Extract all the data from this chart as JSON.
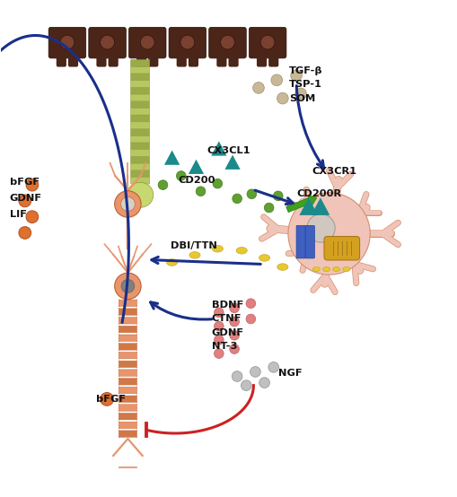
{
  "background_color": "#ffffff",
  "figure_width": 5.1,
  "figure_height": 5.54,
  "dpi": 100,
  "labels": {
    "TGF": "TGF-β",
    "TSP": "TSP-1",
    "SOM": "SOM",
    "CX3CL1": "CX3CL1",
    "CD200": "CD200",
    "CD200R": "CD200R",
    "CX3CR1": "CX3CR1",
    "DBI": "DBI/TTN",
    "BDNF": "BDNF",
    "CTNF": "CTNF",
    "GDNF": "GDNF",
    "NT3": "NT-3",
    "NGF": "NGF",
    "bFGF_left": "bFGF",
    "GDNF_left": "GDNF",
    "LIF": "LIF",
    "bFGF_bot": "bFGF"
  },
  "colors": {
    "cell_dark": "#4a2518",
    "cell_nucleus": "#7a4030",
    "rod_light": "#b8c860",
    "rod_dark": "#9aaa48",
    "rod_ec": "#8a9838",
    "neuron": "#e8956d",
    "neuron_ec": "#c06030",
    "neuron_nucleus": "#d4d0c8",
    "lower_nucleus": "#808080",
    "microglia": "#f0c4b8",
    "microglia_ec": "#d4906c",
    "mg_nucleus": "#d0c8c0",
    "mg_nucleus_ec": "#a09890",
    "mito": "#d4a020",
    "mito_ec": "#a87818",
    "receptor_blue": "#4060c0",
    "receptor_ec": "#2040a0",
    "teal": "#1a8a8a",
    "blue_arrow": "#1a2f8a",
    "red_arrow": "#cc2222",
    "orange_dot": "#e07030",
    "orange_dot_ec": "#b05020",
    "yellow_ellipse": "#e8c830",
    "yellow_ec": "#c0a020",
    "pink_dot": "#e08080",
    "pink_dot_ec": "#c06060",
    "gray_dot": "#c0c0c0",
    "gray_dot_ec": "#909090",
    "green_dot": "#60a030",
    "green_dot_ec": "#408020",
    "beige_dot": "#c8b898",
    "beige_dot_ec": "#a09070",
    "cd200r_green": "#40a020",
    "cd200r_ec": "#208000",
    "label_color": "#111111"
  }
}
